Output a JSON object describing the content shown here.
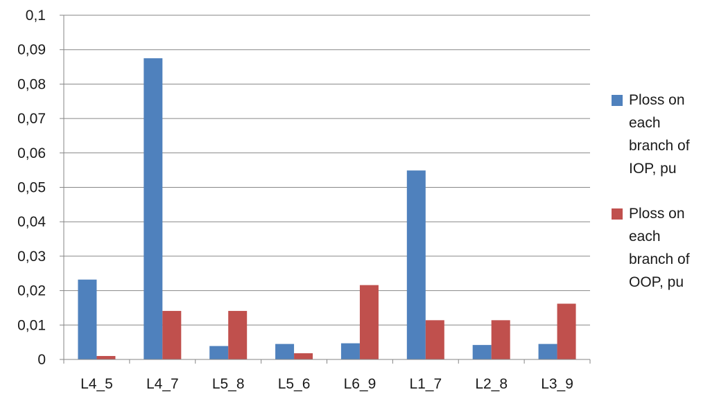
{
  "chart_data": {
    "type": "bar",
    "categories": [
      "L4_5",
      "L4_7",
      "L5_8",
      "L5_6",
      "L6_9",
      "L1_7",
      "L2_8",
      "L3_9"
    ],
    "series": [
      {
        "name": "Ploss on each branch of IOP, pu",
        "color": "#4F81BD",
        "values": [
          0.0232,
          0.0875,
          0.0039,
          0.0045,
          0.0047,
          0.0549,
          0.0042,
          0.0045
        ]
      },
      {
        "name": "Ploss on each branch of OOP, pu",
        "color": "#C0504D",
        "values": [
          0.001,
          0.0141,
          0.0141,
          0.0018,
          0.0216,
          0.0114,
          0.0114,
          0.0162
        ]
      }
    ],
    "yticks": [
      "0",
      "0,01",
      "0,02",
      "0,03",
      "0,04",
      "0,05",
      "0,06",
      "0,07",
      "0,08",
      "0,09",
      "0,1"
    ],
    "ylim": [
      0,
      0.1
    ],
    "title": "",
    "xlabel": "",
    "ylabel": "",
    "grid": true,
    "legend_position": "right"
  }
}
